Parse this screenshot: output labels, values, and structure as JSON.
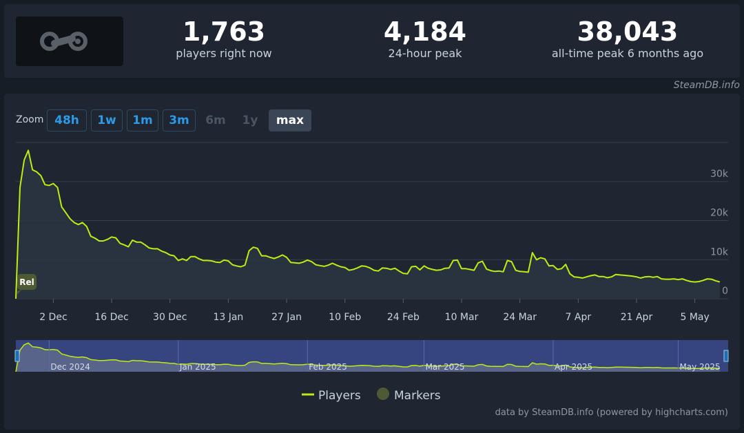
{
  "stats": [
    {
      "value": "1,763",
      "label": "players right now"
    },
    {
      "value": "4,184",
      "label": "24-hour peak"
    },
    {
      "value": "38,043",
      "label": "all-time peak 6 months ago"
    }
  ],
  "source_note": "SteamDB.info",
  "zoom": {
    "label": "Zoom",
    "buttons": [
      {
        "label": "48h",
        "state": "enabled"
      },
      {
        "label": "1w",
        "state": "enabled"
      },
      {
        "label": "1m",
        "state": "enabled"
      },
      {
        "label": "3m",
        "state": "enabled"
      },
      {
        "label": "6m",
        "state": "disabled"
      },
      {
        "label": "1y",
        "state": "disabled"
      },
      {
        "label": "max",
        "state": "active"
      }
    ]
  },
  "credits": "data by SteamDB.info (powered by highcharts.com)",
  "colors": {
    "series": "#beee11",
    "marker": "#4e5a34",
    "grid": "#36414f",
    "navigator_bg": "#3b4a8e"
  },
  "chart_data": {
    "type": "line",
    "title": "",
    "xlabel": "",
    "ylabel": "",
    "x_range": [
      "2024-11-23",
      "2025-05-13"
    ],
    "ylim": [
      0,
      40000
    ],
    "y_ticks": [
      0,
      10000,
      20000,
      30000
    ],
    "y_tick_labels": [
      "0",
      "10k",
      "20k",
      "30k"
    ],
    "x_ticks": [
      "2024-12-02",
      "2024-12-16",
      "2024-12-30",
      "2025-01-13",
      "2025-01-27",
      "2025-02-10",
      "2025-02-24",
      "2025-03-10",
      "2025-03-24",
      "2025-04-07",
      "2025-04-21",
      "2025-05-05"
    ],
    "x_tick_labels": [
      "2 Dec",
      "16 Dec",
      "30 Dec",
      "13 Jan",
      "27 Jan",
      "10 Feb",
      "24 Feb",
      "10 Mar",
      "24 Mar",
      "7 Apr",
      "21 Apr",
      "5 May"
    ],
    "grid": true,
    "legend": {
      "position": "bottom",
      "items": [
        "Players",
        "Markers"
      ]
    },
    "series": [
      {
        "name": "Players",
        "points": [
          [
            "2024-11-23",
            0
          ],
          [
            "2024-11-24",
            28500
          ],
          [
            "2024-11-25",
            35500
          ],
          [
            "2024-11-26",
            38000
          ],
          [
            "2024-11-27",
            33000
          ],
          [
            "2024-11-28",
            32500
          ],
          [
            "2024-11-29",
            31500
          ],
          [
            "2024-11-30",
            29200
          ],
          [
            "2024-12-01",
            29000
          ],
          [
            "2024-12-02",
            29500
          ],
          [
            "2024-12-03",
            28500
          ],
          [
            "2024-12-04",
            23500
          ],
          [
            "2024-12-05",
            22000
          ],
          [
            "2024-12-06",
            20500
          ],
          [
            "2024-12-07",
            19500
          ],
          [
            "2024-12-08",
            19000
          ],
          [
            "2024-12-09",
            19500
          ],
          [
            "2024-12-10",
            18500
          ],
          [
            "2024-12-11",
            16000
          ],
          [
            "2024-12-12",
            15500
          ],
          [
            "2024-12-13",
            14800
          ],
          [
            "2024-12-14",
            14800
          ],
          [
            "2024-12-15",
            15200
          ],
          [
            "2024-12-16",
            15800
          ],
          [
            "2024-12-17",
            15600
          ],
          [
            "2024-12-18",
            14200
          ],
          [
            "2024-12-19",
            13800
          ],
          [
            "2024-12-20",
            13300
          ],
          [
            "2024-12-21",
            15000
          ],
          [
            "2024-12-22",
            14500
          ],
          [
            "2024-12-23",
            14500
          ],
          [
            "2024-12-24",
            13800
          ],
          [
            "2024-12-25",
            13000
          ],
          [
            "2024-12-26",
            12800
          ],
          [
            "2024-12-27",
            12800
          ],
          [
            "2024-12-28",
            12200
          ],
          [
            "2024-12-29",
            11800
          ],
          [
            "2024-12-30",
            11200
          ],
          [
            "2024-12-31",
            11000
          ],
          [
            "2025-01-01",
            9800
          ],
          [
            "2025-01-02",
            10200
          ],
          [
            "2025-01-03",
            9800
          ],
          [
            "2025-01-04",
            10800
          ],
          [
            "2025-01-05",
            10800
          ],
          [
            "2025-01-06",
            10200
          ],
          [
            "2025-01-07",
            9800
          ],
          [
            "2025-01-08",
            9800
          ],
          [
            "2025-01-09",
            9700
          ],
          [
            "2025-01-10",
            9400
          ],
          [
            "2025-01-11",
            9300
          ],
          [
            "2025-01-12",
            9900
          ],
          [
            "2025-01-13",
            9700
          ],
          [
            "2025-01-14",
            8700
          ],
          [
            "2025-01-15",
            8400
          ],
          [
            "2025-01-16",
            8200
          ],
          [
            "2025-01-17",
            8600
          ],
          [
            "2025-01-18",
            12300
          ],
          [
            "2025-01-19",
            13200
          ],
          [
            "2025-01-20",
            12900
          ],
          [
            "2025-01-21",
            11000
          ],
          [
            "2025-01-22",
            11000
          ],
          [
            "2025-01-23",
            10600
          ],
          [
            "2025-01-24",
            10300
          ],
          [
            "2025-01-25",
            10700
          ],
          [
            "2025-01-26",
            11200
          ],
          [
            "2025-01-27",
            10600
          ],
          [
            "2025-01-28",
            9300
          ],
          [
            "2025-01-29",
            9200
          ],
          [
            "2025-01-30",
            9100
          ],
          [
            "2025-01-31",
            9400
          ],
          [
            "2025-02-01",
            9900
          ],
          [
            "2025-02-02",
            9500
          ],
          [
            "2025-02-03",
            8700
          ],
          [
            "2025-02-04",
            8500
          ],
          [
            "2025-02-05",
            8300
          ],
          [
            "2025-02-06",
            8600
          ],
          [
            "2025-02-07",
            9100
          ],
          [
            "2025-02-08",
            8600
          ],
          [
            "2025-02-09",
            8200
          ],
          [
            "2025-02-10",
            8000
          ],
          [
            "2025-02-11",
            7300
          ],
          [
            "2025-02-12",
            7500
          ],
          [
            "2025-02-13",
            7900
          ],
          [
            "2025-02-14",
            8400
          ],
          [
            "2025-02-15",
            8300
          ],
          [
            "2025-02-16",
            7900
          ],
          [
            "2025-02-17",
            7300
          ],
          [
            "2025-02-18",
            7100
          ],
          [
            "2025-02-19",
            7900
          ],
          [
            "2025-02-20",
            7800
          ],
          [
            "2025-02-21",
            7500
          ],
          [
            "2025-02-22",
            7800
          ],
          [
            "2025-02-23",
            7100
          ],
          [
            "2025-02-24",
            6500
          ],
          [
            "2025-02-25",
            6400
          ],
          [
            "2025-02-26",
            8200
          ],
          [
            "2025-02-27",
            8300
          ],
          [
            "2025-02-28",
            7400
          ],
          [
            "2025-03-01",
            8400
          ],
          [
            "2025-03-02",
            7800
          ],
          [
            "2025-03-03",
            7500
          ],
          [
            "2025-03-04",
            7300
          ],
          [
            "2025-03-05",
            7400
          ],
          [
            "2025-03-06",
            7800
          ],
          [
            "2025-03-07",
            7900
          ],
          [
            "2025-03-08",
            9800
          ],
          [
            "2025-03-09",
            9900
          ],
          [
            "2025-03-10",
            7700
          ],
          [
            "2025-03-11",
            7700
          ],
          [
            "2025-03-12",
            7500
          ],
          [
            "2025-03-13",
            7300
          ],
          [
            "2025-03-14",
            9200
          ],
          [
            "2025-03-15",
            9600
          ],
          [
            "2025-03-16",
            7600
          ],
          [
            "2025-03-17",
            7200
          ],
          [
            "2025-03-18",
            7000
          ],
          [
            "2025-03-19",
            7100
          ],
          [
            "2025-03-20",
            6900
          ],
          [
            "2025-03-21",
            9800
          ],
          [
            "2025-03-22",
            9500
          ],
          [
            "2025-03-23",
            7300
          ],
          [
            "2025-03-24",
            7000
          ],
          [
            "2025-03-25",
            6900
          ],
          [
            "2025-03-26",
            6800
          ],
          [
            "2025-03-27",
            11800
          ],
          [
            "2025-03-28",
            10000
          ],
          [
            "2025-03-29",
            10500
          ],
          [
            "2025-03-30",
            10200
          ],
          [
            "2025-03-31",
            8400
          ],
          [
            "2025-04-01",
            8500
          ],
          [
            "2025-04-02",
            7500
          ],
          [
            "2025-04-03",
            7700
          ],
          [
            "2025-04-04",
            8800
          ],
          [
            "2025-04-05",
            6400
          ],
          [
            "2025-04-06",
            5600
          ],
          [
            "2025-04-07",
            5500
          ],
          [
            "2025-04-08",
            5300
          ],
          [
            "2025-04-09",
            5600
          ],
          [
            "2025-04-10",
            5900
          ],
          [
            "2025-04-11",
            6100
          ],
          [
            "2025-04-12",
            5700
          ],
          [
            "2025-04-13",
            5700
          ],
          [
            "2025-04-14",
            5400
          ],
          [
            "2025-04-15",
            5600
          ],
          [
            "2025-04-16",
            6200
          ],
          [
            "2025-04-17",
            6100
          ],
          [
            "2025-04-18",
            6000
          ],
          [
            "2025-04-19",
            5900
          ],
          [
            "2025-04-20",
            5800
          ],
          [
            "2025-04-21",
            5600
          ],
          [
            "2025-04-22",
            5300
          ],
          [
            "2025-04-23",
            5600
          ],
          [
            "2025-04-24",
            5700
          ],
          [
            "2025-04-25",
            5500
          ],
          [
            "2025-04-26",
            5700
          ],
          [
            "2025-04-27",
            5100
          ],
          [
            "2025-04-28",
            5000
          ],
          [
            "2025-04-29",
            5000
          ],
          [
            "2025-04-30",
            5100
          ],
          [
            "2025-05-01",
            4900
          ],
          [
            "2025-05-02",
            5100
          ],
          [
            "2025-05-03",
            4700
          ],
          [
            "2025-05-04",
            4400
          ],
          [
            "2025-05-05",
            4300
          ],
          [
            "2025-05-06",
            4400
          ],
          [
            "2025-05-07",
            4700
          ],
          [
            "2025-05-08",
            5100
          ],
          [
            "2025-05-09",
            5000
          ],
          [
            "2025-05-10",
            4600
          ],
          [
            "2025-05-11",
            4300
          ]
        ]
      }
    ],
    "markers": [
      {
        "date": "2024-11-23",
        "label": "Rel"
      }
    ],
    "navigator_labels": [
      "Dec 2024",
      "Jan 2025",
      "Feb 2025",
      "Mar 2025",
      "Apr 2025",
      "May 2025"
    ]
  }
}
